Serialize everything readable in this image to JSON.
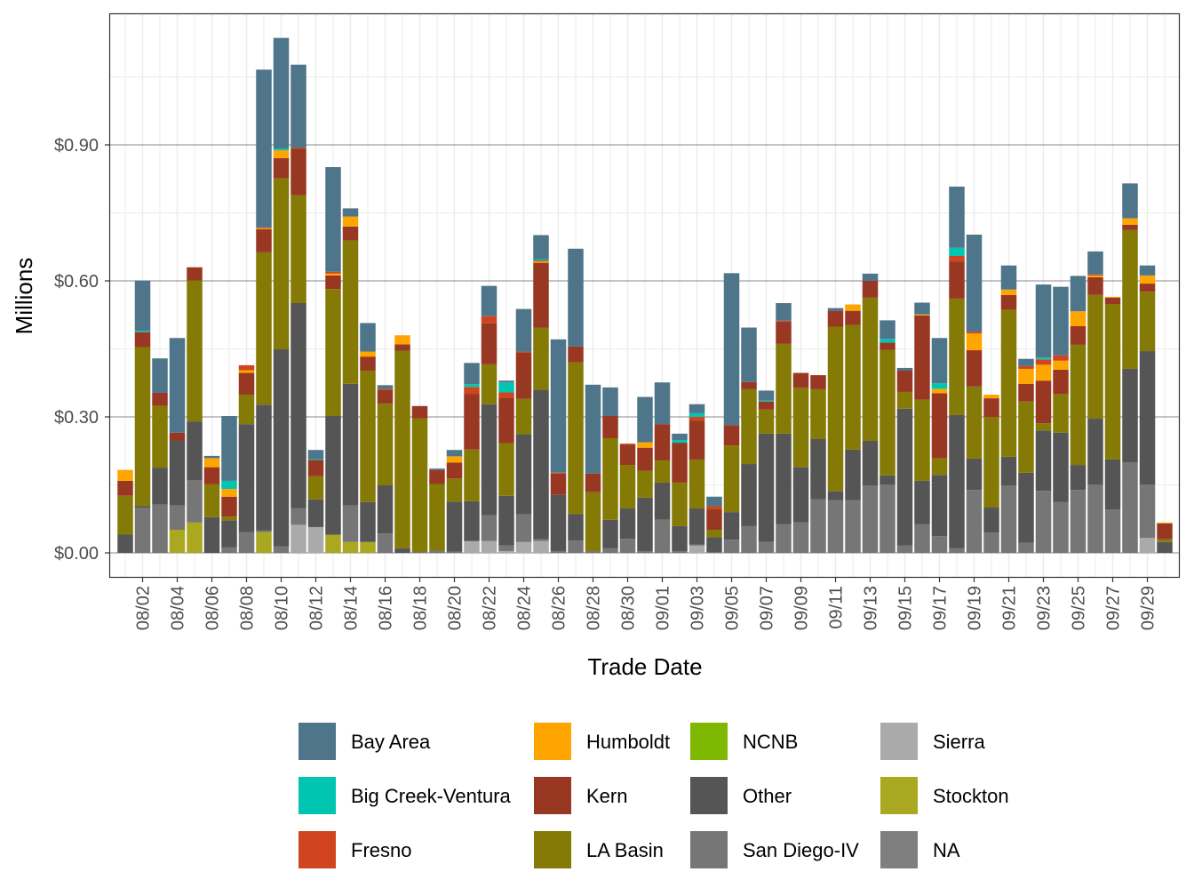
{
  "chart_data": {
    "type": "bar",
    "stacked": true,
    "xlabel": "Trade Date",
    "ylabel": "Millions",
    "ylim": [
      -0.06,
      1.19
    ],
    "y_ticks": [
      0,
      0.3,
      0.6,
      0.9
    ],
    "y_tick_labels": [
      "$0.00",
      "$0.30",
      "$0.60",
      "$0.90"
    ],
    "grid": true,
    "legend_position": "bottom",
    "categories": [
      "08/01",
      "08/02",
      "08/03",
      "08/04",
      "08/05",
      "08/06",
      "08/07",
      "08/08",
      "08/09",
      "08/10",
      "08/11",
      "08/12",
      "08/13",
      "08/14",
      "08/15",
      "08/16",
      "08/17",
      "08/18",
      "08/19",
      "08/20",
      "08/21",
      "08/22",
      "08/23",
      "08/24",
      "08/25",
      "08/26",
      "08/27",
      "08/28",
      "08/29",
      "08/30",
      "08/31",
      "09/01",
      "09/02",
      "09/03",
      "09/04",
      "09/05",
      "09/06",
      "09/07",
      "09/08",
      "09/09",
      "09/10",
      "09/11",
      "09/12",
      "09/13",
      "09/14",
      "09/15",
      "09/16",
      "09/17",
      "09/18",
      "09/19",
      "09/20",
      "09/21",
      "09/22",
      "09/23",
      "09/24",
      "09/25",
      "09/26",
      "09/27",
      "09/28",
      "09/29",
      "09/30"
    ],
    "x_tick_labels": [
      "08/02",
      "08/04",
      "08/06",
      "08/08",
      "08/10",
      "08/12",
      "08/14",
      "08/16",
      "08/18",
      "08/20",
      "08/22",
      "08/24",
      "08/26",
      "08/28",
      "08/30",
      "09/01",
      "09/03",
      "09/05",
      "09/07",
      "09/09",
      "09/11",
      "09/13",
      "09/15",
      "09/17",
      "09/19",
      "09/21",
      "09/23",
      "09/25",
      "09/27",
      "09/29"
    ],
    "series": [
      {
        "name": "Bay Area",
        "color": "#4E758A",
        "values": [
          0,
          0.111,
          0.076,
          0.209,
          0,
          0.005,
          0.143,
          0,
          0.348,
          0.244,
          0.183,
          0.02,
          0.231,
          0.018,
          0.063,
          0.008,
          0,
          0,
          0.003,
          0.014,
          0.047,
          0.067,
          0.004,
          0.094,
          0.053,
          0.294,
          0.216,
          0.196,
          0.063,
          0,
          0.1,
          0.092,
          0.014,
          0.02,
          0.021,
          0.335,
          0.12,
          0.022,
          0.039,
          0,
          0,
          0.006,
          0,
          0.016,
          0.041,
          0.006,
          0.026,
          0.1,
          0.135,
          0.214,
          0,
          0.053,
          0.016,
          0.161,
          0.151,
          0.078,
          0.051,
          0,
          0.077,
          0.022,
          0
        ]
      },
      {
        "name": "Big Creek-Ventura",
        "color": "#00C5B0",
        "values": [
          0,
          0.003,
          0,
          0,
          0,
          0,
          0.018,
          0,
          0,
          0.004,
          0,
          0.002,
          0,
          0,
          0,
          0,
          0,
          0,
          0,
          0,
          0.006,
          0,
          0.022,
          0,
          0.003,
          0,
          0,
          0,
          0,
          0,
          0,
          0,
          0.006,
          0.008,
          0,
          0,
          0,
          0.002,
          0,
          0,
          0,
          0,
          0,
          0,
          0.008,
          0,
          0,
          0.012,
          0.018,
          0,
          0,
          0,
          0,
          0.004,
          0,
          0,
          0,
          0,
          0,
          0,
          0
        ]
      },
      {
        "name": "Fresno",
        "color": "#D04520",
        "values": [
          0,
          0,
          0,
          0,
          0,
          0,
          0,
          0.011,
          0.002,
          0,
          0.002,
          0,
          0.004,
          0,
          0,
          0.002,
          0,
          0,
          0,
          0,
          0.016,
          0.016,
          0.012,
          0.002,
          0.002,
          0.002,
          0,
          0,
          0,
          0.002,
          0,
          0,
          0,
          0.008,
          0.007,
          0,
          0,
          0,
          0.002,
          0,
          0,
          0,
          0,
          0,
          0,
          0,
          0,
          0,
          0.012,
          0.004,
          0,
          0,
          0.006,
          0.012,
          0.012,
          0,
          0.002,
          0,
          0,
          0,
          0
        ]
      },
      {
        "name": "Humboldt",
        "color": "#FFA500",
        "values": [
          0.024,
          0,
          0,
          0,
          0,
          0.02,
          0.017,
          0.006,
          0.002,
          0.017,
          0,
          0,
          0.004,
          0.022,
          0.011,
          0,
          0.02,
          0,
          0,
          0.014,
          0,
          0,
          0,
          0,
          0.003,
          0,
          0,
          0,
          0,
          0,
          0.012,
          0,
          0,
          0,
          0,
          0,
          0,
          0,
          0,
          0,
          0,
          0,
          0.014,
          0,
          0,
          0,
          0.002,
          0.01,
          0,
          0.037,
          0.008,
          0.012,
          0.033,
          0.035,
          0.02,
          0.033,
          0.004,
          0.002,
          0.014,
          0.018,
          0.002
        ]
      },
      {
        "name": "Kern",
        "color": "#993822",
        "values": [
          0.033,
          0.033,
          0.029,
          0.017,
          0.029,
          0.037,
          0.044,
          0.048,
          0.051,
          0.045,
          0.103,
          0.036,
          0.03,
          0.031,
          0.031,
          0.031,
          0.014,
          0.027,
          0.031,
          0.035,
          0.122,
          0.09,
          0.1,
          0.102,
          0.143,
          0.047,
          0.035,
          0.041,
          0.049,
          0.045,
          0.051,
          0.08,
          0.088,
          0.086,
          0.045,
          0.045,
          0.016,
          0.018,
          0.049,
          0.033,
          0.031,
          0.035,
          0.031,
          0.037,
          0.016,
          0.047,
          0.186,
          0.143,
          0.082,
          0.08,
          0.041,
          0.033,
          0.039,
          0.094,
          0.053,
          0.041,
          0.039,
          0.014,
          0.012,
          0.018,
          0.035
        ]
      },
      {
        "name": "LA Basin",
        "color": "#847A05",
        "values": [
          0.085,
          0.351,
          0.136,
          0,
          0.311,
          0.073,
          0.008,
          0.065,
          0.336,
          0.377,
          0.238,
          0.051,
          0.28,
          0.316,
          0.29,
          0.18,
          0.436,
          0.295,
          0.147,
          0.051,
          0.114,
          0.088,
          0.116,
          0.078,
          0.137,
          0,
          0.334,
          0.13,
          0.18,
          0.096,
          0.059,
          0.049,
          0.096,
          0.108,
          0.016,
          0.147,
          0.165,
          0.053,
          0.198,
          0.175,
          0.11,
          0.363,
          0.275,
          0.316,
          0.277,
          0.037,
          0.179,
          0.037,
          0.257,
          0.159,
          0.2,
          0.324,
          0.157,
          0.016,
          0.086,
          0.265,
          0.273,
          0.343,
          0.306,
          0.131,
          0.006
        ]
      },
      {
        "name": "NCNB",
        "color": "#7FB800",
        "values": [
          0,
          0,
          0,
          0,
          0,
          0,
          0,
          0,
          0,
          0,
          0,
          0,
          0,
          0,
          0,
          0,
          0,
          0,
          0,
          0,
          0,
          0,
          0,
          0,
          0,
          0,
          0,
          0,
          0,
          0,
          0,
          0,
          0,
          0,
          0,
          0,
          0,
          0,
          0,
          0,
          0,
          0,
          0,
          0,
          0,
          0,
          0,
          0,
          0,
          0,
          0,
          0,
          0,
          0,
          0,
          0,
          0,
          0,
          0,
          0,
          0
        ]
      },
      {
        "name": "Other",
        "color": "#555555",
        "values": [
          0.041,
          0.003,
          0.081,
          0.143,
          0.13,
          0.079,
          0.06,
          0.238,
          0.277,
          0.435,
          0.452,
          0.061,
          0.262,
          0.268,
          0.088,
          0.106,
          0.01,
          0,
          0,
          0.11,
          0.088,
          0.245,
          0.11,
          0.177,
          0.33,
          0.124,
          0.059,
          0,
          0.063,
          0.067,
          0.118,
          0.082,
          0.055,
          0.08,
          0.033,
          0.061,
          0.137,
          0.239,
          0.2,
          0.122,
          0.133,
          0.02,
          0.112,
          0.098,
          0.02,
          0.302,
          0.096,
          0.135,
          0.294,
          0.069,
          0.055,
          0.063,
          0.155,
          0.133,
          0.153,
          0.055,
          0.145,
          0.11,
          0.206,
          0.294,
          0.024
        ]
      },
      {
        "name": "San Diego-IV",
        "color": "#767676",
        "values": [
          0,
          0.1,
          0.107,
          0.054,
          0.093,
          0,
          0.012,
          0.046,
          0.004,
          0.014,
          0.037,
          0,
          0,
          0.081,
          0,
          0.043,
          0,
          0.002,
          0.005,
          0.003,
          0,
          0.057,
          0.012,
          0.061,
          0.004,
          0.004,
          0.027,
          0.004,
          0.01,
          0.031,
          0.004,
          0.073,
          0.004,
          0.002,
          0.002,
          0.029,
          0.059,
          0.024,
          0.063,
          0.067,
          0.118,
          0.116,
          0.116,
          0.149,
          0.151,
          0.016,
          0.063,
          0.037,
          0.01,
          0.139,
          0.045,
          0.149,
          0.022,
          0.137,
          0.112,
          0.139,
          0.151,
          0.096,
          0.2,
          0.118,
          0
        ]
      },
      {
        "name": "Sierra",
        "color": "#AAAAAA",
        "values": [
          0,
          0,
          0,
          0,
          0,
          0,
          0,
          0,
          0,
          0,
          0.062,
          0.057,
          0,
          0,
          0,
          0,
          0,
          0,
          0,
          0,
          0.026,
          0.026,
          0.004,
          0.024,
          0.026,
          0,
          0,
          0,
          0,
          0,
          0,
          0,
          0,
          0.016,
          0,
          0,
          0,
          0,
          0,
          0,
          0,
          0,
          0,
          0,
          0,
          0,
          0,
          0,
          0,
          0,
          0,
          0,
          0,
          0,
          0,
          0,
          0,
          0,
          0,
          0.033,
          0
        ]
      },
      {
        "name": "Stockton",
        "color": "#AAA820",
        "values": [
          0,
          0,
          0,
          0.051,
          0.067,
          0,
          0,
          0,
          0.046,
          0,
          0,
          0,
          0.04,
          0.024,
          0.024,
          0,
          0,
          0,
          0,
          0,
          0,
          0,
          0,
          0,
          0,
          0,
          0,
          0,
          0,
          0,
          0,
          0,
          0,
          0,
          0,
          0,
          0,
          0,
          0,
          0,
          0,
          0,
          0,
          0,
          0,
          0,
          0,
          0,
          0,
          0,
          0,
          0,
          0,
          0,
          0,
          0,
          0,
          0,
          0,
          0,
          0
        ]
      },
      {
        "name": "NA",
        "color": "#7F7F7F",
        "values": [
          0,
          0,
          0,
          0,
          0,
          0,
          0,
          0,
          0,
          0,
          0,
          0,
          0,
          0,
          0,
          0,
          0,
          0,
          0,
          0,
          0,
          0,
          0,
          0,
          0,
          0,
          0,
          0,
          0,
          0,
          0,
          0,
          0,
          0,
          0,
          0,
          0,
          0,
          0,
          0,
          0,
          0,
          0,
          0,
          0,
          0,
          0,
          0,
          0,
          0,
          0,
          0,
          0,
          0,
          0,
          0,
          0,
          0,
          0,
          0,
          0
        ]
      }
    ]
  }
}
